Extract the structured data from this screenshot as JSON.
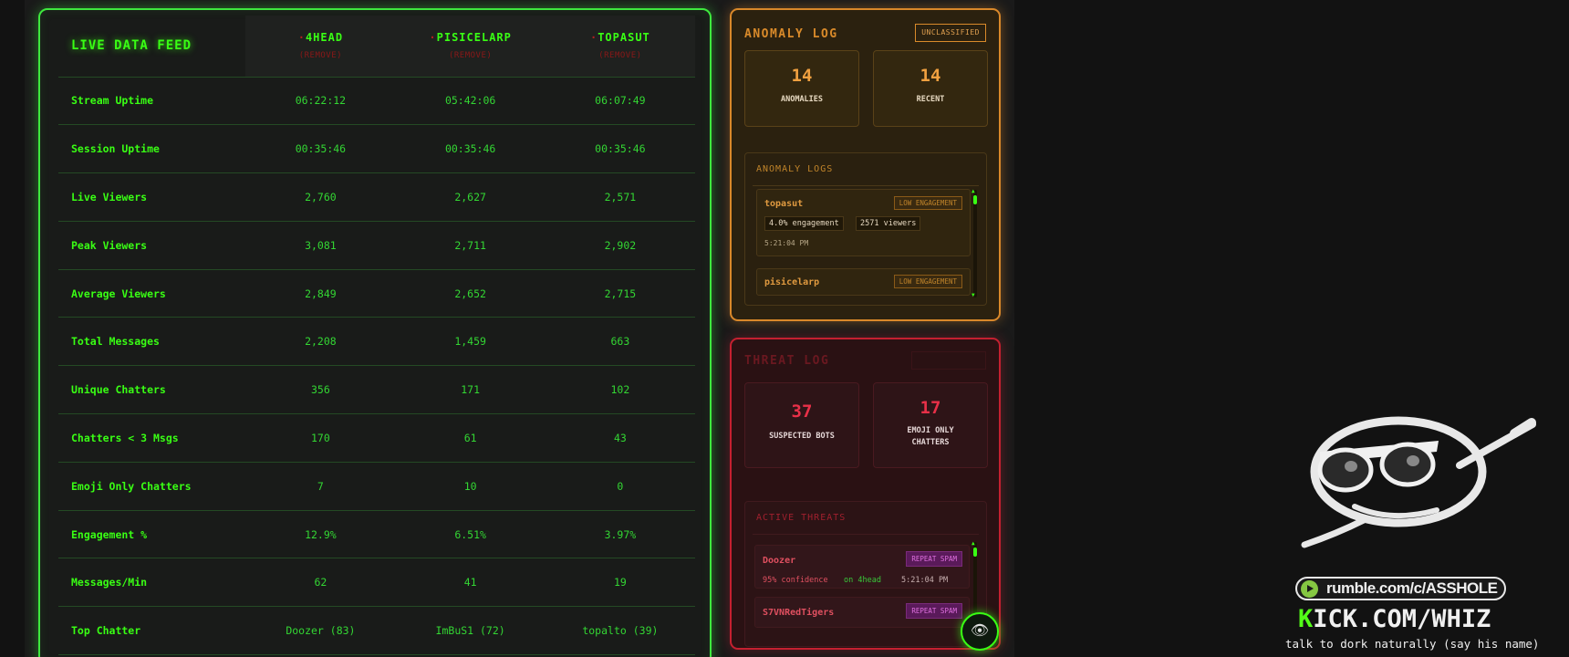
{
  "live_feed": {
    "title": "LIVE DATA FEED",
    "streamers": [
      {
        "name": "4HEAD",
        "remove": "(REMOVE)"
      },
      {
        "name": "PISICELARP",
        "remove": "(REMOVE)"
      },
      {
        "name": "TOPASUT",
        "remove": "(REMOVE)"
      }
    ],
    "rows": [
      {
        "label": "Stream Uptime",
        "values": [
          "06:22:12",
          "05:42:06",
          "06:07:49"
        ]
      },
      {
        "label": "Session Uptime",
        "values": [
          "00:35:46",
          "00:35:46",
          "00:35:46"
        ]
      },
      {
        "label": "Live Viewers",
        "values": [
          "2,760",
          "2,627",
          "2,571"
        ]
      },
      {
        "label": "Peak Viewers",
        "values": [
          "3,081",
          "2,711",
          "2,902"
        ]
      },
      {
        "label": "Average Viewers",
        "values": [
          "2,849",
          "2,652",
          "2,715"
        ]
      },
      {
        "label": "Total Messages",
        "values": [
          "2,208",
          "1,459",
          "663"
        ]
      },
      {
        "label": "Unique Chatters",
        "values": [
          "356",
          "171",
          "102"
        ]
      },
      {
        "label": "Chatters < 3 Msgs",
        "values": [
          "170",
          "61",
          "43"
        ]
      },
      {
        "label": "Emoji Only Chatters",
        "values": [
          "7",
          "10",
          "0"
        ]
      },
      {
        "label": "Engagement %",
        "values": [
          "12.9%",
          "6.51%",
          "3.97%"
        ]
      },
      {
        "label": "Messages/Min",
        "values": [
          "62",
          "41",
          "19"
        ]
      },
      {
        "label": "Top Chatter",
        "values": [
          "Doozer (83)",
          "ImBuS1 (72)",
          "topalto (39)"
        ]
      }
    ]
  },
  "anomaly": {
    "title": "ANOMALY LOG",
    "tag_button": "UNCLASSIFIED",
    "stats": [
      {
        "value": "14",
        "label": "ANOMALIES"
      },
      {
        "value": "14",
        "label": "RECENT"
      }
    ],
    "logs_title": "ANOMALY LOGS",
    "entries": [
      {
        "name": "topasut",
        "tag": "LOW ENGAGEMENT",
        "engagement": "4.0% engagement",
        "viewers": "2571 viewers",
        "time": "5:21:04 PM"
      },
      {
        "name": "pisicelarp",
        "tag": "LOW ENGAGEMENT"
      }
    ]
  },
  "threat": {
    "title": "THREAT LOG",
    "stats": [
      {
        "value": "37",
        "label": "SUSPECTED BOTS"
      },
      {
        "value": "17",
        "label_line1": "EMOJI ONLY",
        "label_line2": "CHATTERS"
      }
    ],
    "active_title": "ACTIVE THREATS",
    "entries": [
      {
        "name": "Doozer",
        "tag": "REPEAT SPAM",
        "confidence": "95% confidence",
        "channel": "on 4head",
        "time": "5:21:04 PM"
      },
      {
        "name": "S7VNRedTigers",
        "tag": "REPEAT SPAM"
      }
    ]
  },
  "overlay": {
    "rumble": "rumble.com/c/ASSHOLE",
    "kick_k": "K",
    "kick_rest": "ICK.COM/WHIZ",
    "tagline": "talk to dork naturally (say his name)"
  },
  "icons": {
    "eye": "eye-icon",
    "rumble": "rumble-play-icon"
  },
  "colors": {
    "live_accent": "#39ff14",
    "anomaly_accent": "#d9882a",
    "threat_accent": "#c42030",
    "kick_green": "#53fc18"
  }
}
